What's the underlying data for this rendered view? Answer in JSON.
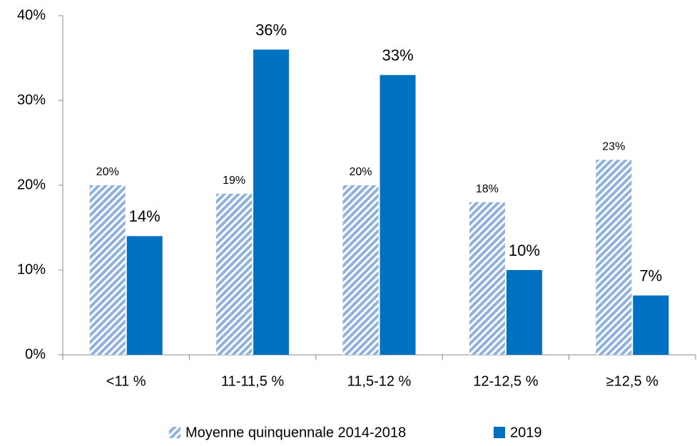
{
  "chart_data": {
    "type": "bar",
    "categories": [
      "<11 %",
      "11-11,5 %",
      "11,5-12 %",
      "12-12,5 %",
      "≥12,5 %"
    ],
    "series": [
      {
        "name": "Moyenne quinquennale 2014-2018",
        "color": "#8fb1df",
        "pattern": "hatched",
        "values": [
          20,
          19,
          20,
          18,
          23
        ],
        "value_labels": [
          "20%",
          "19%",
          "20%",
          "18%",
          "23%"
        ]
      },
      {
        "name": "2019",
        "color": "#0070c0",
        "values": [
          14,
          36,
          33,
          10,
          7
        ],
        "value_labels": [
          "14%",
          "36%",
          "33%",
          "10%",
          "7%"
        ]
      }
    ],
    "ylim": [
      0,
      40
    ],
    "yticks": [
      {
        "value": 0,
        "label": "0%"
      },
      {
        "value": 10,
        "label": "10%"
      },
      {
        "value": 20,
        "label": "20%"
      },
      {
        "value": 30,
        "label": "30%"
      },
      {
        "value": 40,
        "label": "40%"
      }
    ],
    "grid": false,
    "legend": "bottom"
  }
}
